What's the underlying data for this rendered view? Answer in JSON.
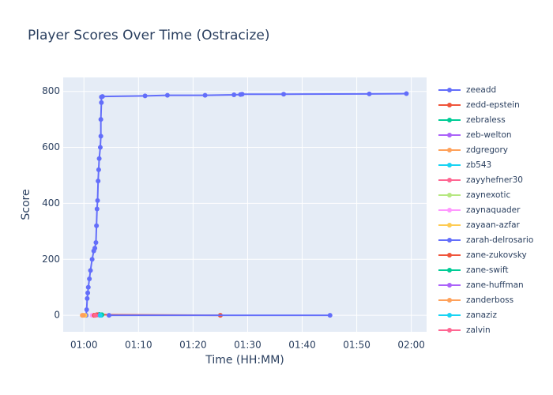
{
  "chart_data": {
    "type": "line",
    "title": "Player Scores Over Time (Ostracize)",
    "x_label": "Time (HH:MM)",
    "y_label": "Score",
    "xlim": [
      56.2,
      122.8
    ],
    "xticks": [
      {
        "value": 60,
        "label": "01:00"
      },
      {
        "value": 70,
        "label": "01:10"
      },
      {
        "value": 80,
        "label": "01:20"
      },
      {
        "value": 90,
        "label": "01:30"
      },
      {
        "value": 100,
        "label": "01:40"
      },
      {
        "value": 110,
        "label": "01:50"
      },
      {
        "value": 120,
        "label": "02:00"
      }
    ],
    "ylim": [
      -59,
      850
    ],
    "yticks": [
      0,
      200,
      400,
      600,
      800
    ],
    "grid": true,
    "legend": "right",
    "series": [
      {
        "name": "zeeadd",
        "color": "#636efa",
        "x": [
          60.4,
          60.5,
          60.6,
          60.7,
          60.8,
          61.0,
          61.2,
          61.5,
          61.8,
          62.0,
          62.2,
          62.3,
          62.4,
          62.5,
          62.6,
          62.7,
          62.8,
          63.0,
          63.1,
          63.1,
          63.2,
          63.2,
          63.4,
          71.2,
          75.3,
          82.2,
          87.5,
          88.7,
          89.0,
          96.6,
          112.3,
          119.1
        ],
        "values": [
          0,
          20,
          60,
          80,
          100,
          130,
          160,
          200,
          230,
          240,
          260,
          320,
          380,
          410,
          480,
          520,
          560,
          600,
          640,
          700,
          760,
          780,
          782,
          784,
          786,
          786,
          788,
          789,
          790,
          790,
          791,
          792
        ]
      },
      {
        "name": "zedd-epstein",
        "color": "#EF553B",
        "x": [
          61.8,
          62.2,
          62.6,
          85.0
        ],
        "values": [
          0,
          1,
          2,
          0
        ]
      },
      {
        "name": "zebraless",
        "color": "#00cc96",
        "x": [
          62.8,
          63.1
        ],
        "values": [
          3,
          1
        ]
      },
      {
        "name": "zeb-welton",
        "color": "#ab63fa",
        "x": [
          62.5
        ],
        "values": [
          2
        ]
      },
      {
        "name": "zdgregory",
        "color": "#FFA15A",
        "x": [
          59.7
        ],
        "values": [
          0
        ]
      },
      {
        "name": "zb543",
        "color": "#19d3f3",
        "x": [
          63.2
        ],
        "values": [
          0
        ]
      },
      {
        "name": "zayyhefner30",
        "color": "#FF6692",
        "x": [
          62.0
        ],
        "values": [
          0
        ]
      },
      {
        "name": "zaynexotic",
        "color": "#B6E880",
        "x": [
          62.3
        ],
        "values": [
          1
        ]
      },
      {
        "name": "zaynaquader",
        "color": "#FF97FF",
        "x": [
          61.5
        ],
        "values": [
          0
        ]
      },
      {
        "name": "zayaan-azfar",
        "color": "#FECB52",
        "x": [
          60.2
        ],
        "values": [
          0
        ]
      },
      {
        "name": "zarah-delrosario",
        "color": "#636efa",
        "x": [
          64.6,
          105.1
        ],
        "values": [
          0,
          0
        ]
      },
      {
        "name": "zane-zukovsky",
        "color": "#EF553B",
        "x": [
          61.9,
          62.4
        ],
        "values": [
          0,
          2
        ]
      },
      {
        "name": "zane-swift",
        "color": "#00cc96",
        "x": [
          63.3
        ],
        "values": [
          2
        ]
      },
      {
        "name": "zane-huffman",
        "color": "#ab63fa",
        "x": [
          62.9
        ],
        "values": [
          0
        ]
      },
      {
        "name": "zanderboss",
        "color": "#FFA15A",
        "x": [
          59.9
        ],
        "values": [
          0
        ]
      },
      {
        "name": "zanaziz",
        "color": "#19d3f3",
        "x": [
          63.0
        ],
        "values": [
          0
        ]
      },
      {
        "name": "zalvin",
        "color": "#FF6692",
        "x": [
          62.1
        ],
        "values": [
          0
        ]
      }
    ]
  }
}
